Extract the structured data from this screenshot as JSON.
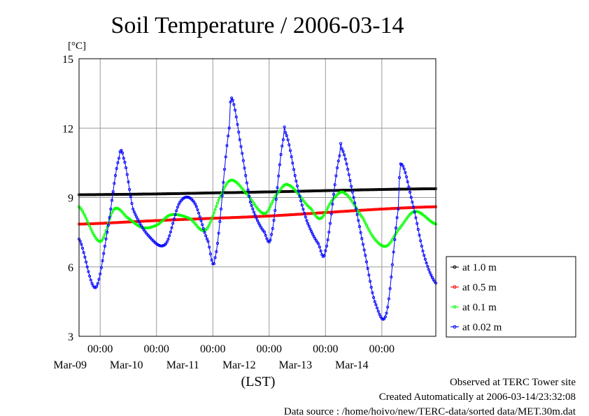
{
  "chart_data": {
    "type": "line",
    "title": "Soil Temperature / 2006-03-14",
    "y_unit": "[°C]",
    "xlabel": "(LST)",
    "ylim": [
      3,
      15
    ],
    "yticks": [
      3,
      6,
      9,
      12,
      15
    ],
    "xlim": [
      "2006-03-08 15:00",
      "2006-03-14 23:00"
    ],
    "x_ticks": [
      {
        "time": "00:00",
        "date": "Mar-09",
        "at": "2006-03-09 00:00"
      },
      {
        "time": "00:00",
        "date": "Mar-10",
        "at": "2006-03-10 00:00"
      },
      {
        "time": "00:00",
        "date": "Mar-11",
        "at": "2006-03-11 00:00"
      },
      {
        "time": "00:00",
        "date": "Mar-12",
        "at": "2006-03-12 00:00"
      },
      {
        "time": "00:00",
        "date": "Mar-13",
        "at": "2006-03-13 00:00"
      },
      {
        "time": "00:00",
        "date": "Mar-14",
        "at": "2006-03-14 00:00"
      }
    ],
    "grid": true,
    "legend_position": "right",
    "series": [
      {
        "name": "at 1.0 m",
        "color": "#000000",
        "x": [
          "2006-03-08 15:00",
          "2006-03-11 00:00",
          "2006-03-14 23:00"
        ],
        "y": [
          9.12,
          9.2,
          9.38
        ]
      },
      {
        "name": "at 0.5 m",
        "color": "#ff0000",
        "x": [
          "2006-03-08 15:00",
          "2006-03-10 00:00",
          "2006-03-11 00:00",
          "2006-03-12 00:00",
          "2006-03-13 00:00",
          "2006-03-14 00:00",
          "2006-03-14 23:00"
        ],
        "y": [
          7.85,
          8.0,
          8.1,
          8.2,
          8.35,
          8.5,
          8.6
        ]
      },
      {
        "name": "at 0.1 m",
        "color": "#00ff00",
        "x": [
          "2006-03-08 15:00",
          "2006-03-09 00:00",
          "2006-03-09 06:00",
          "2006-03-09 12:00",
          "2006-03-09 18:00",
          "2006-03-10 00:00",
          "2006-03-10 06:00",
          "2006-03-10 14:00",
          "2006-03-10 21:00",
          "2006-03-11 04:00",
          "2006-03-11 08:00",
          "2006-03-11 14:00",
          "2006-03-11 22:00",
          "2006-03-12 03:00",
          "2006-03-12 08:00",
          "2006-03-12 18:00",
          "2006-03-12 22:00",
          "2006-03-13 03:00",
          "2006-03-13 08:00",
          "2006-03-13 16:00",
          "2006-03-13 21:00",
          "2006-03-14 02:00",
          "2006-03-14 07:00",
          "2006-03-14 14:00",
          "2006-03-14 23:00"
        ],
        "y": [
          8.6,
          7.1,
          8.5,
          8.1,
          7.7,
          7.8,
          8.25,
          8.1,
          7.6,
          9.2,
          9.75,
          9.2,
          8.3,
          9.1,
          9.55,
          8.5,
          8.1,
          8.9,
          9.2,
          8.1,
          7.2,
          6.9,
          7.6,
          8.4,
          7.85
        ]
      },
      {
        "name": "at 0.02 m",
        "color": "#0000ff",
        "x": [
          "2006-03-08 15:00",
          "2006-03-08 22:00",
          "2006-03-09 03:00",
          "2006-03-09 08:00",
          "2006-03-09 10:00",
          "2006-03-09 14:00",
          "2006-03-09 21:00",
          "2006-03-10 04:00",
          "2006-03-10 10:00",
          "2006-03-10 16:00",
          "2006-03-10 22:00",
          "2006-03-11 01:00",
          "2006-03-11 07:00",
          "2006-03-11 08:00",
          "2006-03-11 12:00",
          "2006-03-11 16:00",
          "2006-03-11 22:00",
          "2006-03-12 01:00",
          "2006-03-12 06:00",
          "2006-03-12 07:00",
          "2006-03-12 12:00",
          "2006-03-12 16:00",
          "2006-03-12 21:00",
          "2006-03-13 00:00",
          "2006-03-13 06:00",
          "2006-03-13 07:00",
          "2006-03-13 12:00",
          "2006-03-13 17:00",
          "2006-03-13 21:00",
          "2006-03-14 02:00",
          "2006-03-14 07:00",
          "2006-03-14 08:00",
          "2006-03-14 13:00",
          "2006-03-14 18:00",
          "2006-03-14 23:00"
        ],
        "y": [
          7.2,
          5.1,
          7.5,
          10.7,
          10.7,
          8.5,
          7.3,
          7.0,
          8.8,
          8.8,
          7.1,
          6.4,
          12.0,
          13.3,
          11.2,
          8.8,
          7.5,
          7.4,
          11.5,
          11.8,
          9.5,
          8.0,
          7.0,
          6.7,
          10.8,
          11.1,
          9.0,
          6.5,
          4.5,
          4.0,
          8.5,
          10.45,
          8.8,
          6.5,
          5.3
        ]
      }
    ]
  },
  "footer": {
    "line1": "Observed at TERC Tower site",
    "line2": "Created Automatically at 2006-03-14/23:32:08",
    "line3": "Data source : /home/hoivo/new/TERC-data/sorted  data/MET.30m.dat"
  }
}
